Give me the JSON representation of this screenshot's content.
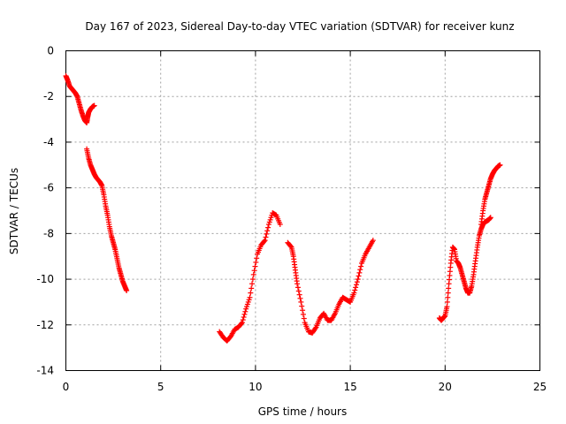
{
  "chart_data": {
    "type": "scatter",
    "title": "Day 167 of 2023, Sidereal Day-to-day VTEC variation (SDTVAR) for receiver kunz",
    "xlabel": "GPS time / hours",
    "ylabel": "SDTVAR / TECUs",
    "xlim": [
      0,
      25
    ],
    "ylim": [
      -14,
      0
    ],
    "xticks": [
      0,
      5,
      10,
      15,
      20,
      25
    ],
    "yticks": [
      0,
      -2,
      -4,
      -6,
      -8,
      -10,
      -12,
      -14
    ],
    "grid": true,
    "marker": "+",
    "series_color": "#ff0000",
    "series": [
      {
        "name": "segment-1",
        "x": [
          0.0,
          0.1,
          0.2,
          0.3,
          0.4,
          0.5,
          0.6,
          0.7,
          0.8,
          0.9,
          1.0,
          1.1,
          1.15,
          1.2,
          1.3,
          1.4,
          1.5
        ],
        "y": [
          -1.1,
          -1.3,
          -1.55,
          -1.65,
          -1.75,
          -1.85,
          -2.0,
          -2.3,
          -2.6,
          -2.85,
          -3.05,
          -3.15,
          -2.9,
          -2.7,
          -2.55,
          -2.45,
          -2.4
        ]
      },
      {
        "name": "segment-2",
        "x": [
          1.1,
          1.2,
          1.3,
          1.4,
          1.5,
          1.6,
          1.7,
          1.8,
          1.9,
          2.0,
          2.1,
          2.2,
          2.3,
          2.4,
          2.5,
          2.6,
          2.7,
          2.8,
          2.9,
          3.0,
          3.1,
          3.2
        ],
        "y": [
          -4.3,
          -4.7,
          -5.0,
          -5.2,
          -5.4,
          -5.55,
          -5.65,
          -5.75,
          -5.9,
          -6.3,
          -6.8,
          -7.2,
          -7.7,
          -8.1,
          -8.4,
          -8.7,
          -9.1,
          -9.5,
          -9.8,
          -10.1,
          -10.3,
          -10.5
        ]
      },
      {
        "name": "segment-3",
        "x": [
          8.1,
          8.3,
          8.5,
          8.7,
          8.9,
          9.1,
          9.3,
          9.5,
          9.7,
          9.9,
          10.1,
          10.3,
          10.5,
          10.7,
          10.9,
          11.1,
          11.3
        ],
        "y": [
          -12.3,
          -12.55,
          -12.7,
          -12.5,
          -12.2,
          -12.1,
          -11.9,
          -11.3,
          -10.8,
          -9.8,
          -8.9,
          -8.5,
          -8.3,
          -7.6,
          -7.1,
          -7.2,
          -7.6
        ]
      },
      {
        "name": "segment-4",
        "x": [
          11.7,
          11.9,
          12.0,
          12.1,
          12.2,
          12.4,
          12.6,
          12.8,
          13.0,
          13.2,
          13.4,
          13.6,
          13.8,
          14.0,
          14.2,
          14.4,
          14.6,
          14.8,
          15.0,
          15.2,
          15.4,
          15.6,
          15.8,
          16.0,
          16.2
        ],
        "y": [
          -8.4,
          -8.6,
          -9.0,
          -9.6,
          -10.2,
          -11.0,
          -11.9,
          -12.3,
          -12.35,
          -12.1,
          -11.7,
          -11.5,
          -11.8,
          -11.8,
          -11.5,
          -11.1,
          -10.8,
          -10.9,
          -11.0,
          -10.6,
          -10.0,
          -9.3,
          -8.9,
          -8.6,
          -8.3
        ]
      },
      {
        "name": "segment-5",
        "x": [
          19.7,
          19.8,
          19.9,
          20.0,
          20.1,
          20.2,
          20.3,
          20.4,
          20.5,
          20.6,
          20.7,
          20.8,
          20.9,
          21.0,
          21.1,
          21.2,
          21.3,
          21.4,
          21.5,
          21.6,
          21.7,
          21.8,
          21.9,
          22.0,
          22.1,
          22.2,
          22.3,
          22.4
        ],
        "y": [
          -11.7,
          -11.8,
          -11.7,
          -11.6,
          -11.2,
          -10.2,
          -9.3,
          -8.6,
          -8.7,
          -9.2,
          -9.3,
          -9.5,
          -9.8,
          -10.1,
          -10.4,
          -10.6,
          -10.6,
          -10.3,
          -9.8,
          -9.2,
          -8.6,
          -8.1,
          -7.8,
          -7.6,
          -7.5,
          -7.45,
          -7.4,
          -7.3
        ]
      },
      {
        "name": "segment-6",
        "x": [
          21.9,
          22.0,
          22.1,
          22.2,
          22.3,
          22.4,
          22.5,
          22.6,
          22.7,
          22.8,
          22.9
        ],
        "y": [
          -7.6,
          -7.0,
          -6.5,
          -6.2,
          -5.9,
          -5.6,
          -5.4,
          -5.25,
          -5.15,
          -5.05,
          -5.0
        ]
      }
    ]
  }
}
